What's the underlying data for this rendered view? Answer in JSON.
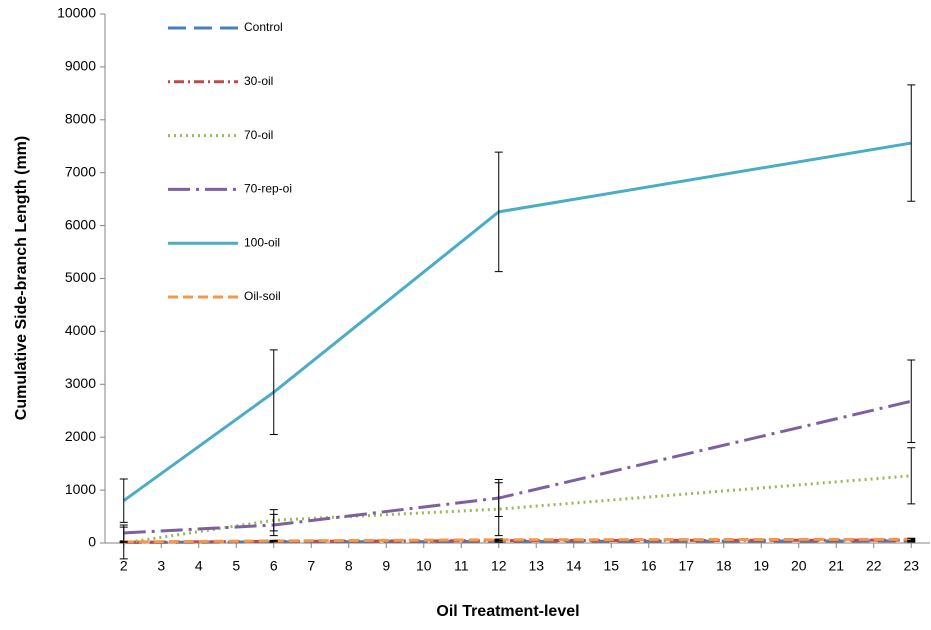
{
  "chart_data": {
    "type": "line",
    "x_label": "Oil Treatment-level",
    "y_label": "Cumulative Side-branch Length (mm)",
    "x": [
      2,
      6,
      12,
      23
    ],
    "xlim": [
      1.5,
      23.5
    ],
    "xticks": [
      2,
      3,
      4,
      5,
      6,
      7,
      8,
      9,
      10,
      11,
      12,
      13,
      14,
      15,
      16,
      17,
      18,
      19,
      20,
      21,
      22,
      23
    ],
    "ylim": [
      0,
      10000
    ],
    "yticks": [
      0,
      1000,
      2000,
      3000,
      4000,
      5000,
      6000,
      7000,
      8000,
      9000,
      10000
    ],
    "grid": false,
    "legend": "upper left",
    "series": [
      {
        "name": "Control",
        "color": "#4a7ebb",
        "dash": "18,8",
        "values": [
          10,
          20,
          30,
          40
        ],
        "errors": [
          5,
          10,
          15,
          20
        ]
      },
      {
        "name": "30-oil",
        "color": "#be4b48",
        "dash": "2,4,10,4",
        "values": [
          15,
          30,
          45,
          55
        ],
        "errors": [
          5,
          10,
          15,
          20
        ]
      },
      {
        "name": "70-oil",
        "color": "#98b954",
        "dash": "2,4",
        "values": [
          0,
          430,
          640,
          1270
        ],
        "errors": [
          300,
          200,
          500,
          530
        ]
      },
      {
        "name": "70-rep-oi",
        "color": "#7d60a0",
        "dash": "22,6,3,6",
        "values": [
          190,
          340,
          850,
          2680
        ],
        "errors": [
          150,
          200,
          350,
          780
        ]
      },
      {
        "name": "100-oil",
        "color": "#4bacc6",
        "dash": "",
        "values": [
          800,
          2850,
          6260,
          7560
        ],
        "errors": [
          410,
          800,
          1130,
          1100
        ]
      },
      {
        "name": "Oil-soil",
        "color": "#f79646",
        "dash": "10,5",
        "values": [
          20,
          40,
          60,
          70
        ],
        "errors": [
          5,
          10,
          15,
          20
        ]
      }
    ]
  }
}
